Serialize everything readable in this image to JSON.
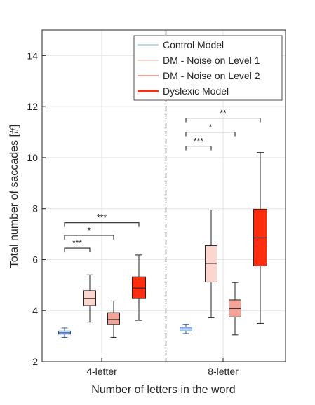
{
  "chart_data": {
    "type": "box",
    "xlabel": "Number of letters in the word",
    "ylabel": "Total number of saccades [#]",
    "ylim": [
      2,
      15
    ],
    "yticks": [
      2,
      4,
      6,
      8,
      10,
      12,
      14
    ],
    "grid": true,
    "legend_position": "top-right",
    "groups": [
      "4-letter",
      "8-letter"
    ],
    "series": [
      {
        "name": "Control Model",
        "color": "#bdd7ee",
        "edge": "#2f5597"
      },
      {
        "name": "DM - Noise on Level 1",
        "color": "#fcd5cf",
        "edge": "#262626"
      },
      {
        "name": "DM - Noise on Level 2",
        "color": "#f4a497",
        "edge": "#262626"
      },
      {
        "name": "Dyslexic Model",
        "color": "#ff2d0f",
        "edge": "#262626"
      }
    ],
    "boxes": [
      {
        "group": "4-letter",
        "series": "Control Model",
        "whisker_low": 2.95,
        "q1": 3.08,
        "median": 3.13,
        "q3": 3.2,
        "whisker_high": 3.32
      },
      {
        "group": "4-letter",
        "series": "DM - Noise on Level 1",
        "whisker_low": 3.55,
        "q1": 4.2,
        "median": 4.47,
        "q3": 4.78,
        "whisker_high": 5.4
      },
      {
        "group": "4-letter",
        "series": "DM - Noise on Level 2",
        "whisker_low": 2.95,
        "q1": 3.45,
        "median": 3.65,
        "q3": 3.92,
        "whisker_high": 4.38
      },
      {
        "group": "4-letter",
        "series": "Dyslexic Model",
        "whisker_low": 3.62,
        "q1": 4.47,
        "median": 4.88,
        "q3": 5.32,
        "whisker_high": 6.18
      },
      {
        "group": "8-letter",
        "series": "Control Model",
        "whisker_low": 3.1,
        "q1": 3.2,
        "median": 3.28,
        "q3": 3.35,
        "whisker_high": 3.45
      },
      {
        "group": "8-letter",
        "series": "DM - Noise on Level 1",
        "whisker_low": 3.72,
        "q1": 5.12,
        "median": 5.85,
        "q3": 6.55,
        "whisker_high": 7.95
      },
      {
        "group": "8-letter",
        "series": "DM - Noise on Level 2",
        "whisker_low": 3.05,
        "q1": 3.75,
        "median": 4.08,
        "q3": 4.42,
        "whisker_high": 5.1
      },
      {
        "group": "8-letter",
        "series": "Dyslexic Model",
        "whisker_low": 3.5,
        "q1": 5.75,
        "median": 6.85,
        "q3": 7.98,
        "whisker_high": 10.2
      }
    ],
    "significance": [
      {
        "group": "4-letter",
        "from": "Control Model",
        "to": "DM - Noise on Level 1",
        "y": 6.45,
        "label": "***"
      },
      {
        "group": "4-letter",
        "from": "Control Model",
        "to": "DM - Noise on Level 2",
        "y": 6.95,
        "label": "*"
      },
      {
        "group": "4-letter",
        "from": "Control Model",
        "to": "Dyslexic Model",
        "y": 7.45,
        "label": "***"
      },
      {
        "group": "8-letter",
        "from": "Control Model",
        "to": "DM - Noise on Level 1",
        "y": 10.45,
        "label": "***"
      },
      {
        "group": "8-letter",
        "from": "Control Model",
        "to": "DM - Noise on Level 2",
        "y": 11.0,
        "label": "*"
      },
      {
        "group": "8-letter",
        "from": "Control Model",
        "to": "Dyslexic Model",
        "y": 11.55,
        "label": "**"
      }
    ],
    "group_separator": true
  }
}
